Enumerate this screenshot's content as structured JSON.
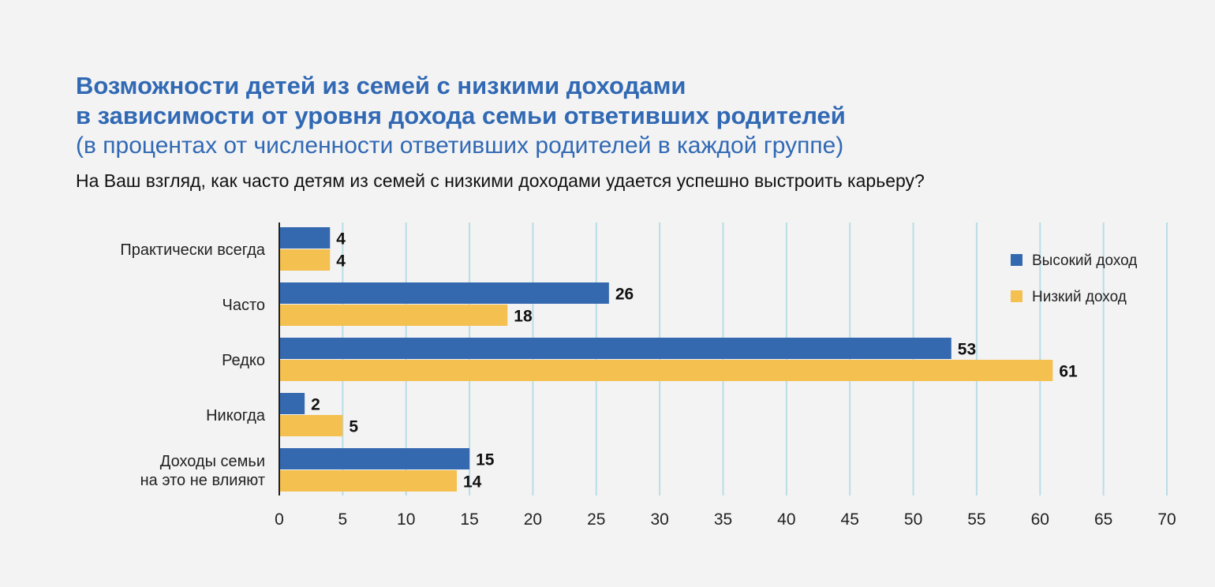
{
  "header": {
    "title_line1": "Возможности детей из семей с низкими доходами",
    "title_line2": "в зависимости от уровня дохода семьи ответивших родителей",
    "subtitle": "(в процентах от численности ответивших родителей в каждой группе)",
    "question": "На Ваш взгляд, как часто детям из семей с низкими доходами удается успешно выстроить карьеру?"
  },
  "chart_data": {
    "type": "bar",
    "orientation": "horizontal",
    "categories": [
      [
        "Практически всегда"
      ],
      [
        "Часто"
      ],
      [
        "Редко"
      ],
      [
        "Никогда"
      ],
      [
        "Доходы семьи",
        "на это не влияют"
      ]
    ],
    "series": [
      {
        "name": "Высокий доход",
        "color": "#3469b0",
        "values": [
          4,
          26,
          53,
          2,
          15
        ]
      },
      {
        "name": "Низкий доход",
        "color": "#f4c04f",
        "values": [
          4,
          18,
          61,
          5,
          14
        ]
      }
    ],
    "xlim": [
      0,
      70
    ],
    "xticks": [
      "0",
      "5",
      "10",
      "15",
      "20",
      "25",
      "30",
      "35",
      "40",
      "45",
      "50",
      "55",
      "60",
      "65",
      "70"
    ],
    "grid": true,
    "grid_color": "#b9dde6",
    "legend_position": "top-right"
  }
}
